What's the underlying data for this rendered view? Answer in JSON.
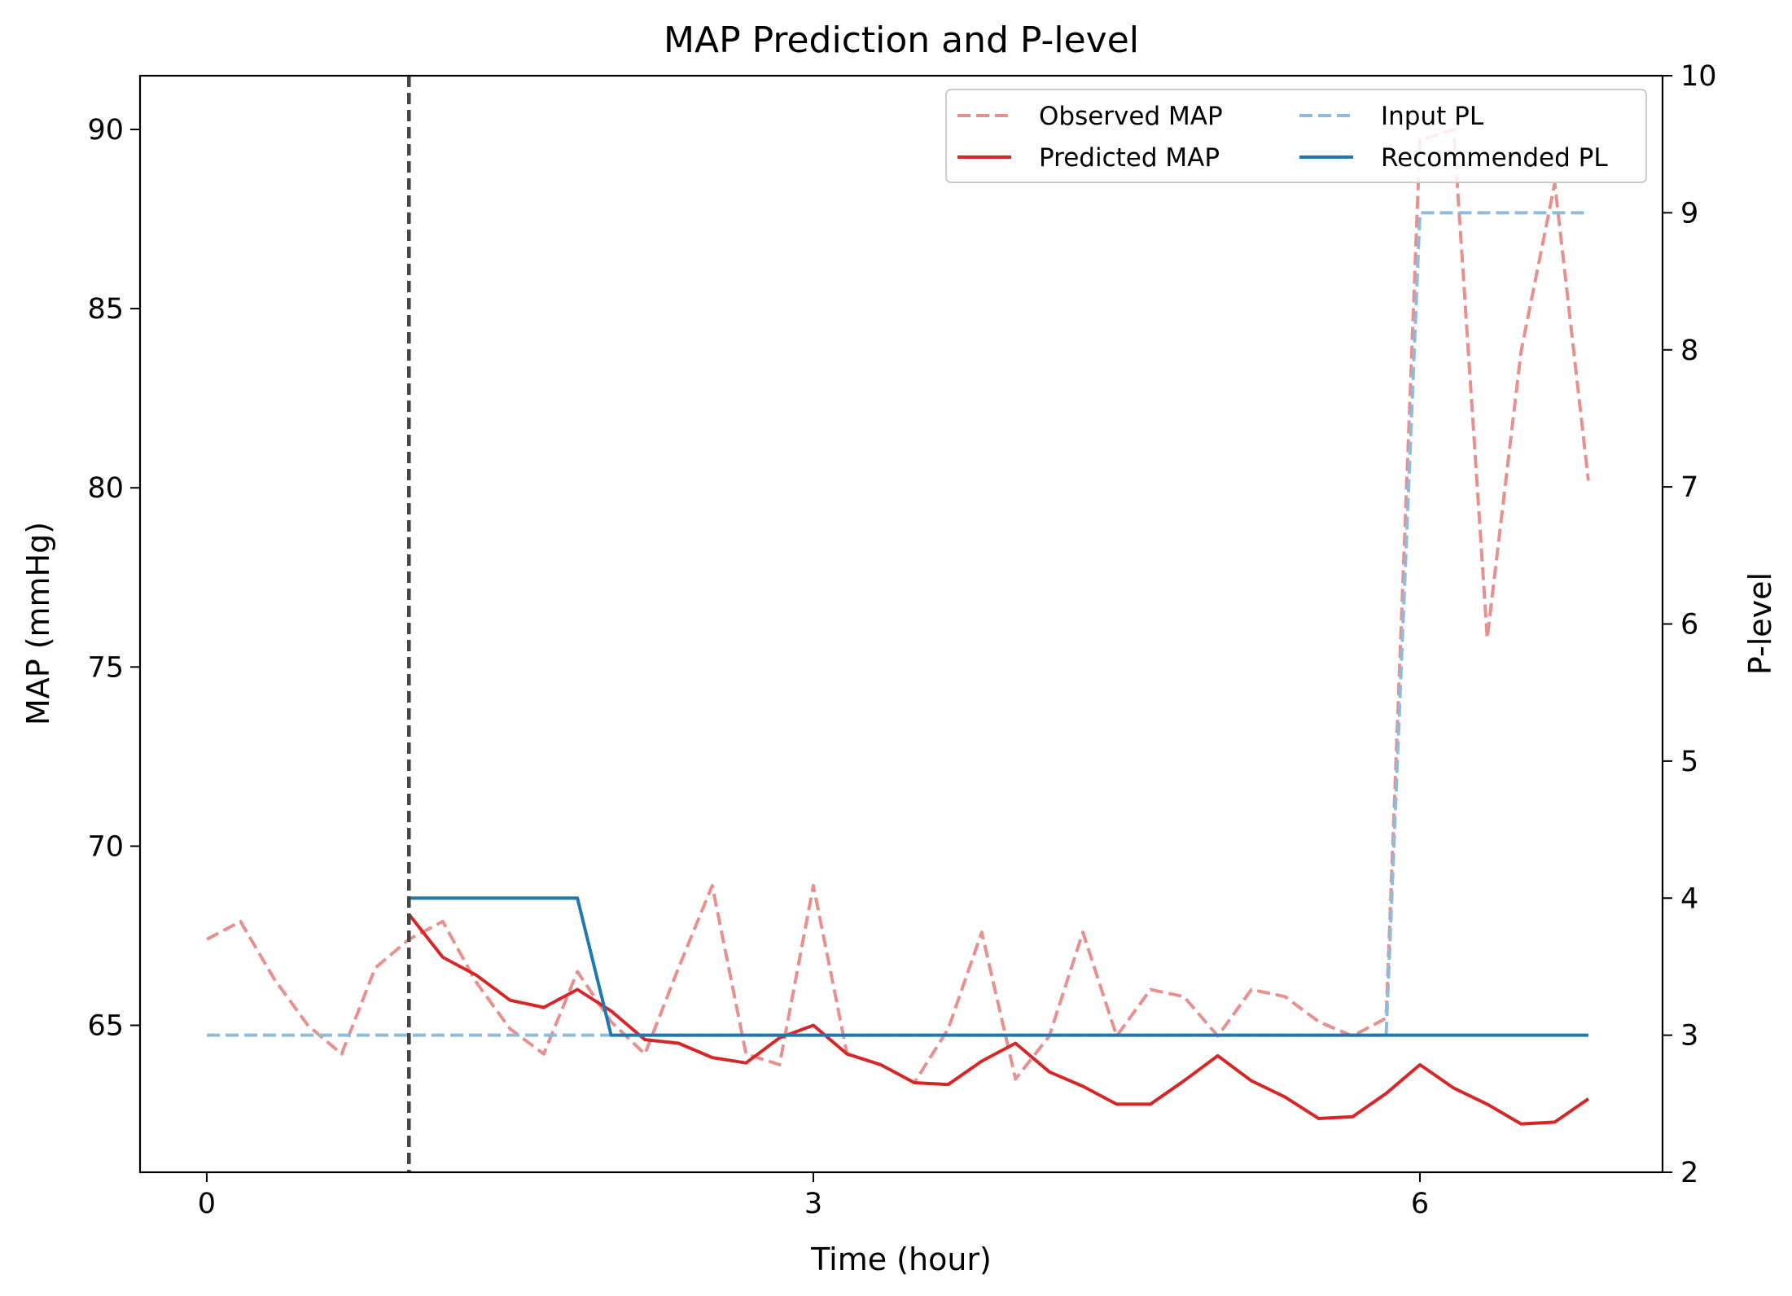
{
  "chart_data": {
    "type": "line",
    "title": "MAP Prediction and P-level",
    "xlabel": "Time (hour)",
    "ylabel": "MAP (mmHg)",
    "y2label": "P-level",
    "xlim": [
      -0.33,
      7.2
    ],
    "ylim": [
      60.9,
      91.5
    ],
    "y2lim": [
      2,
      10
    ],
    "xticks": [
      0,
      3,
      6
    ],
    "yticks": [
      65,
      70,
      75,
      80,
      85,
      90
    ],
    "y2ticks": [
      2,
      3,
      4,
      5,
      6,
      7,
      8,
      9,
      10
    ],
    "vline_x": 1.0,
    "legend_position": "top-right",
    "grid": false,
    "series": [
      {
        "name": "Observed MAP",
        "axis": "left",
        "style": "dashed",
        "color": "#e89090",
        "x": [
          0,
          0.167,
          0.333,
          0.5,
          0.667,
          0.833,
          1.0,
          1.167,
          1.333,
          1.5,
          1.667,
          1.833,
          2.0,
          2.167,
          2.333,
          2.5,
          2.667,
          2.833,
          3.0,
          3.167,
          3.333,
          3.5,
          3.667,
          3.833,
          4.0,
          4.167,
          4.333,
          4.5,
          4.667,
          4.833,
          5.0,
          5.167,
          5.333,
          5.5,
          5.667,
          5.833,
          6.0,
          6.167,
          6.333,
          6.5,
          6.667,
          6.833
        ],
        "y": [
          67.4,
          67.9,
          66.3,
          65.0,
          64.2,
          66.6,
          67.4,
          67.9,
          66.2,
          64.9,
          64.2,
          66.5,
          65.1,
          64.2,
          66.6,
          68.9,
          64.2,
          63.9,
          68.9,
          64.2,
          63.9,
          63.4,
          64.9,
          67.6,
          63.5,
          64.7,
          67.6,
          64.7,
          66.0,
          65.8,
          64.7,
          66.0,
          65.8,
          65.1,
          64.7,
          65.2,
          89.7,
          90.0,
          75.8,
          83.8,
          88.5,
          80.2
        ]
      },
      {
        "name": "Predicted MAP",
        "axis": "left",
        "style": "solid",
        "color": "#d62728",
        "x": [
          1.0,
          1.167,
          1.333,
          1.5,
          1.667,
          1.833,
          2.0,
          2.167,
          2.333,
          2.5,
          2.667,
          2.833,
          3.0,
          3.167,
          3.333,
          3.5,
          3.667,
          3.833,
          4.0,
          4.167,
          4.333,
          4.5,
          4.667,
          4.833,
          5.0,
          5.167,
          5.333,
          5.5,
          5.667,
          5.833,
          6.0,
          6.167,
          6.333,
          6.5,
          6.667,
          6.833
        ],
        "y": [
          68.1,
          66.9,
          66.4,
          65.7,
          65.5,
          66.0,
          65.4,
          64.6,
          64.5,
          64.1,
          63.95,
          64.65,
          65.0,
          64.2,
          63.9,
          63.4,
          63.35,
          64.0,
          64.5,
          63.7,
          63.3,
          62.8,
          62.8,
          63.45,
          64.15,
          63.45,
          63.0,
          62.4,
          62.45,
          63.1,
          63.9,
          63.25,
          62.8,
          62.25,
          62.3,
          62.95
        ]
      },
      {
        "name": "Input PL",
        "axis": "right",
        "style": "dashed",
        "color": "#8fbcdc",
        "x": [
          0,
          5.833,
          6.0,
          6.833
        ],
        "y": [
          3,
          3,
          9,
          9
        ]
      },
      {
        "name": "Recommended PL",
        "axis": "right",
        "style": "solid",
        "color": "#1f77b4",
        "x": [
          1.0,
          1.833,
          2.0,
          6.833
        ],
        "y": [
          4,
          4,
          3,
          3
        ]
      }
    ]
  }
}
